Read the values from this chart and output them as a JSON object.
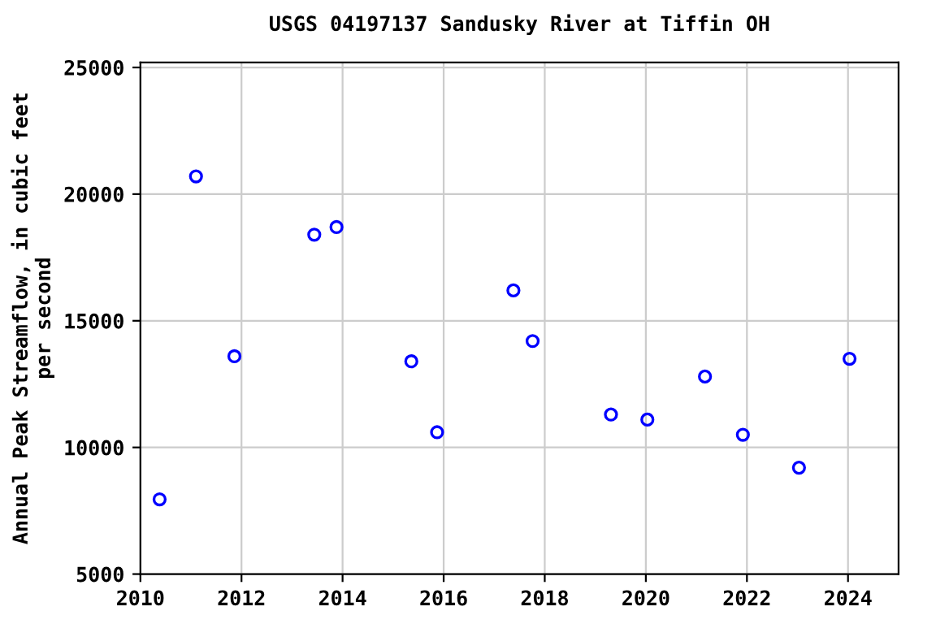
{
  "chart_data": {
    "type": "scatter",
    "title": "USGS 04197137 Sandusky River at Tiffin OH",
    "ylabel": "Annual Peak Streamflow, in cubic feet\nper second",
    "x": [
      2010.38,
      2011.1,
      2011.86,
      2013.44,
      2013.88,
      2015.36,
      2015.87,
      2017.38,
      2017.76,
      2019.31,
      2020.03,
      2021.17,
      2021.92,
      2023.03,
      2024.03
    ],
    "values": [
      7950,
      20700,
      13600,
      18400,
      18700,
      13400,
      10600,
      16200,
      14200,
      11300,
      11100,
      12800,
      10500,
      9200,
      13500
    ],
    "color": "#0000ff",
    "marker": "circle",
    "grid": true,
    "xlim": [
      2010,
      2025
    ],
    "xticks": [
      2010,
      2012,
      2014,
      2016,
      2018,
      2020,
      2022,
      2024
    ],
    "ylim": [
      5000,
      25200
    ],
    "yticks": [
      5000,
      10000,
      15000,
      20000,
      25000
    ]
  }
}
